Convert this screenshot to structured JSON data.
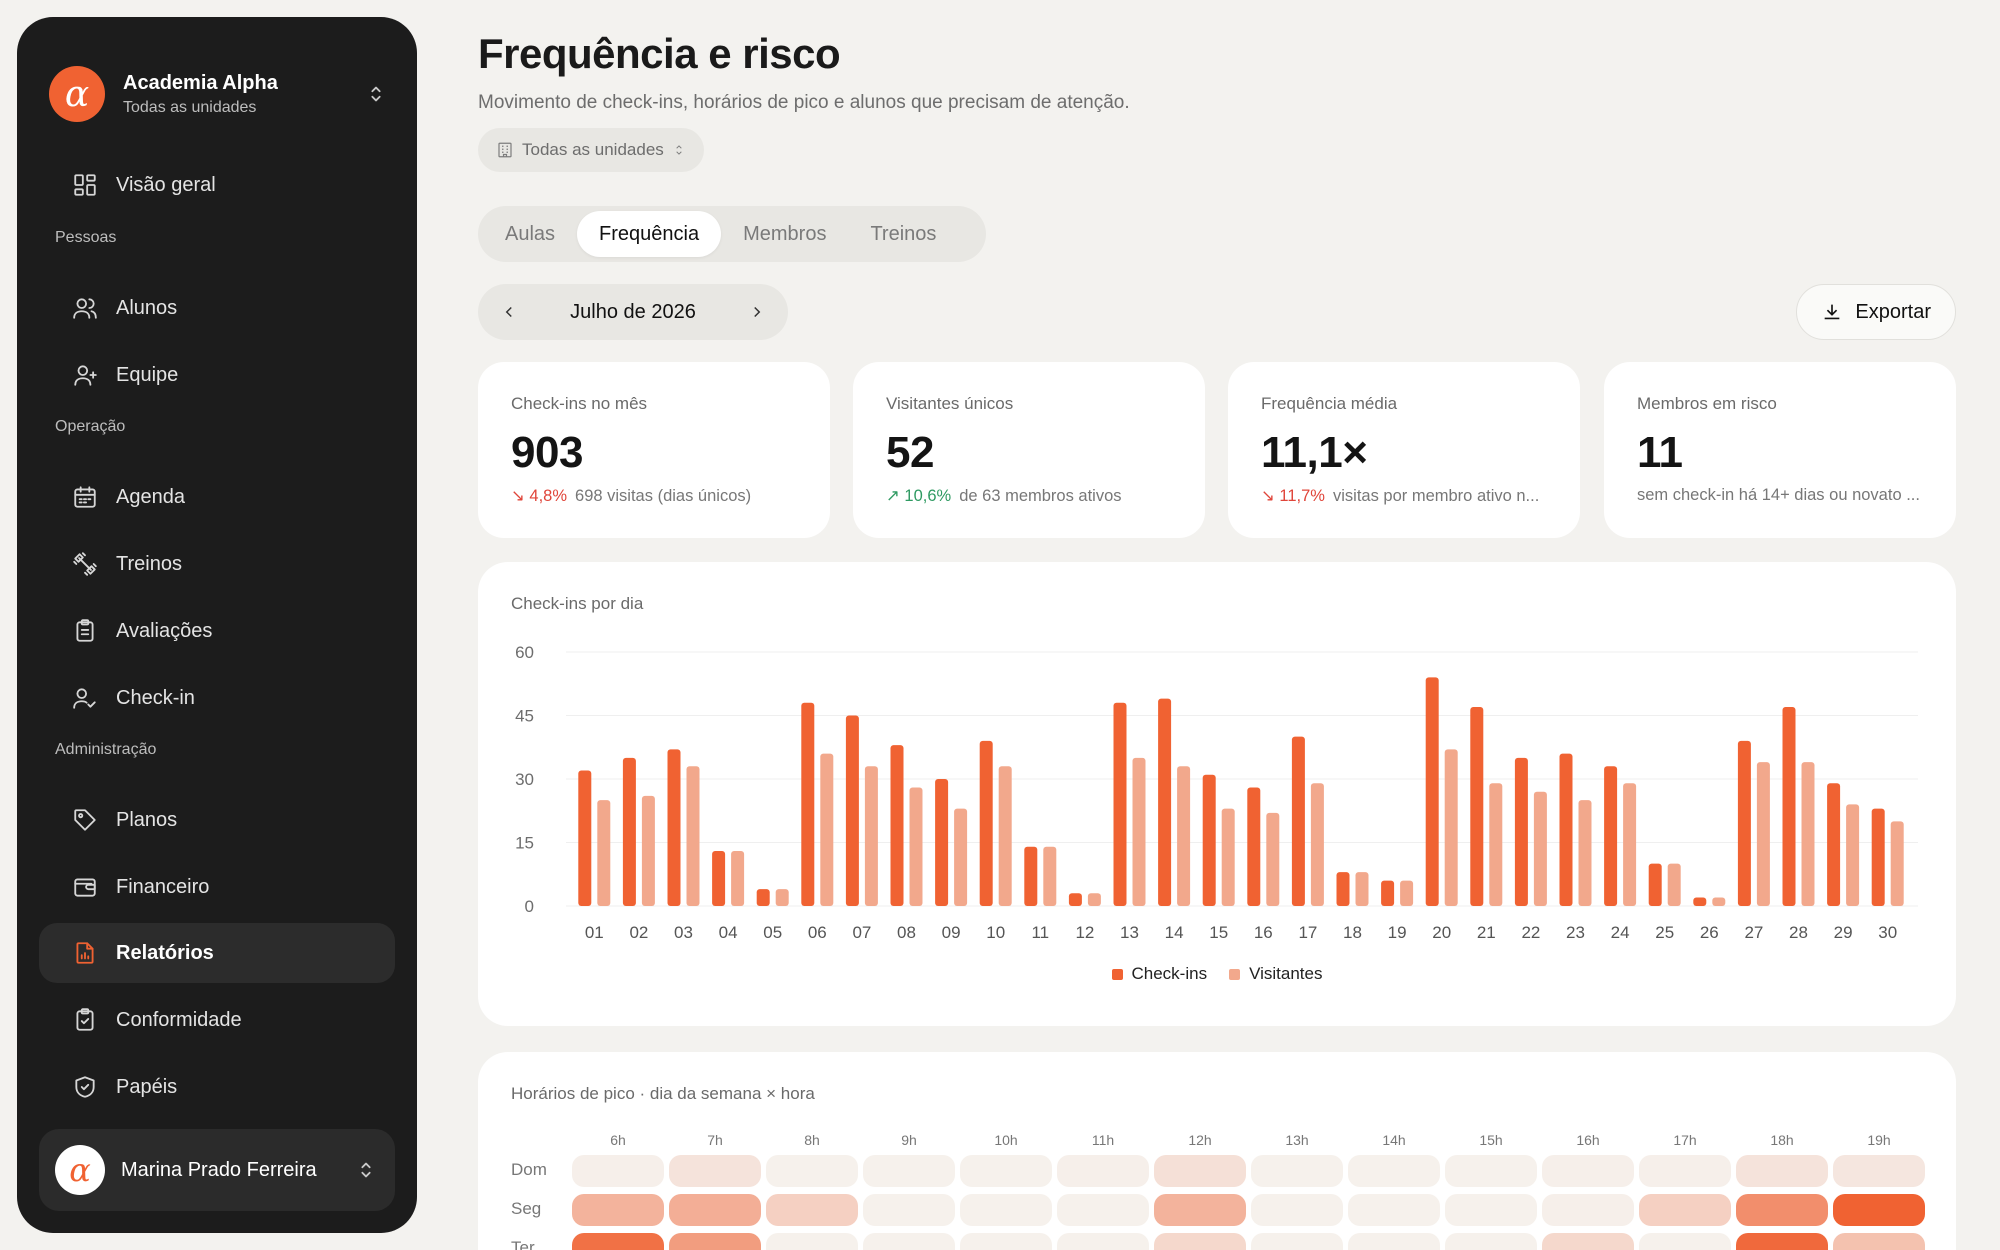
{
  "brand": {
    "name": "Academia Alpha",
    "subtitle": "Todas as unidades",
    "logo_letter": "α"
  },
  "sidebar": {
    "items": [
      {
        "label": "Visão geral",
        "icon": "grid-icon"
      },
      {
        "label": "Alunos",
        "icon": "users-icon"
      },
      {
        "label": "Equipe",
        "icon": "team-icon"
      },
      {
        "label": "Agenda",
        "icon": "calendar-icon"
      },
      {
        "label": "Treinos",
        "icon": "dumbbell-icon"
      },
      {
        "label": "Avaliações",
        "icon": "clipboard-icon"
      },
      {
        "label": "Check-in",
        "icon": "user-check-icon"
      },
      {
        "label": "Planos",
        "icon": "tag-icon"
      },
      {
        "label": "Financeiro",
        "icon": "wallet-icon"
      },
      {
        "label": "Relatórios",
        "icon": "report-icon",
        "active": true
      },
      {
        "label": "Conformidade",
        "icon": "clipboard-check-icon"
      },
      {
        "label": "Papéis",
        "icon": "shield-icon"
      }
    ],
    "sections": {
      "people": "Pessoas",
      "operations": "Operação",
      "admin": "Administração"
    },
    "user": {
      "name": "Marina Prado Ferreira",
      "avatar_letter": "α"
    }
  },
  "header": {
    "title": "Frequência e risco",
    "subtitle": "Movimento de check-ins, horários de pico e alunos que precisam de atenção.",
    "unit_filter": "Todas as unidades"
  },
  "tabs": [
    {
      "label": "Aulas"
    },
    {
      "label": "Frequência",
      "active": true
    },
    {
      "label": "Membros"
    },
    {
      "label": "Treinos"
    }
  ],
  "period": {
    "label": "Julho de 2026"
  },
  "export_label": "Exportar",
  "kpis": [
    {
      "label": "Check-ins no mês",
      "value": "903",
      "delta": "↘ 4,8%",
      "delta_dir": "down",
      "note": "698 visitas (dias únicos)"
    },
    {
      "label": "Visitantes únicos",
      "value": "52",
      "delta": "↗ 10,6%",
      "delta_dir": "up",
      "note": "de 63 membros ativos"
    },
    {
      "label": "Frequência média",
      "value": "11,1×",
      "delta": "↘ 11,7%",
      "delta_dir": "down",
      "note": "visitas por membro ativo n..."
    },
    {
      "label": "Membros em risco",
      "value": "11",
      "delta": "",
      "delta_dir": "",
      "note": "sem check-in há 14+ dias ou novato ..."
    }
  ],
  "colors": {
    "accent": "#f06232",
    "accent_light": "#f2a88c",
    "grid": "#efefef"
  },
  "chart_data": {
    "type": "bar",
    "title": "Check-ins por dia",
    "categories": [
      "01",
      "02",
      "03",
      "04",
      "05",
      "06",
      "07",
      "08",
      "09",
      "10",
      "11",
      "12",
      "13",
      "14",
      "15",
      "16",
      "17",
      "18",
      "19",
      "20",
      "21",
      "22",
      "23",
      "24",
      "25",
      "26",
      "27",
      "28",
      "29",
      "30"
    ],
    "series": [
      {
        "name": "Check-ins",
        "values": [
          32,
          35,
          37,
          13,
          4,
          48,
          45,
          38,
          30,
          39,
          14,
          3,
          48,
          49,
          31,
          28,
          40,
          8,
          6,
          54,
          47,
          35,
          36,
          33,
          10,
          2,
          39,
          47,
          29,
          23
        ],
        "color": "#f06232"
      },
      {
        "name": "Visitantes",
        "values": [
          25,
          26,
          33,
          13,
          4,
          36,
          33,
          28,
          23,
          33,
          14,
          3,
          35,
          33,
          23,
          22,
          29,
          8,
          6,
          37,
          29,
          27,
          25,
          29,
          10,
          2,
          34,
          34,
          24,
          20
        ],
        "color": "#f2a88c"
      }
    ],
    "yticks": [
      0,
      15,
      30,
      45,
      60
    ],
    "ylim": [
      0,
      60
    ],
    "grid": true,
    "legend_position": "bottom"
  },
  "heatmap": {
    "title": "Horários de pico · dia da semana × hora",
    "hours": [
      "6h",
      "7h",
      "8h",
      "9h",
      "10h",
      "11h",
      "12h",
      "13h",
      "14h",
      "15h",
      "16h",
      "17h",
      "18h",
      "19h"
    ],
    "days": [
      {
        "label": "Dom",
        "values": [
          0.04,
          0.12,
          0.03,
          0.03,
          0.03,
          0.04,
          0.14,
          0.03,
          0.03,
          0.03,
          0.04,
          0.04,
          0.12,
          0.1
        ]
      },
      {
        "label": "Seg",
        "values": [
          0.45,
          0.48,
          0.25,
          0.03,
          0.03,
          0.03,
          0.45,
          0.03,
          0.03,
          0.03,
          0.04,
          0.25,
          0.7,
          1.0
        ]
      },
      {
        "label": "Ter",
        "values": [
          0.9,
          0.6,
          0.03,
          0.03,
          0.03,
          0.03,
          0.2,
          0.03,
          0.03,
          0.03,
          0.2,
          0.03,
          0.95,
          0.35
        ]
      }
    ]
  }
}
